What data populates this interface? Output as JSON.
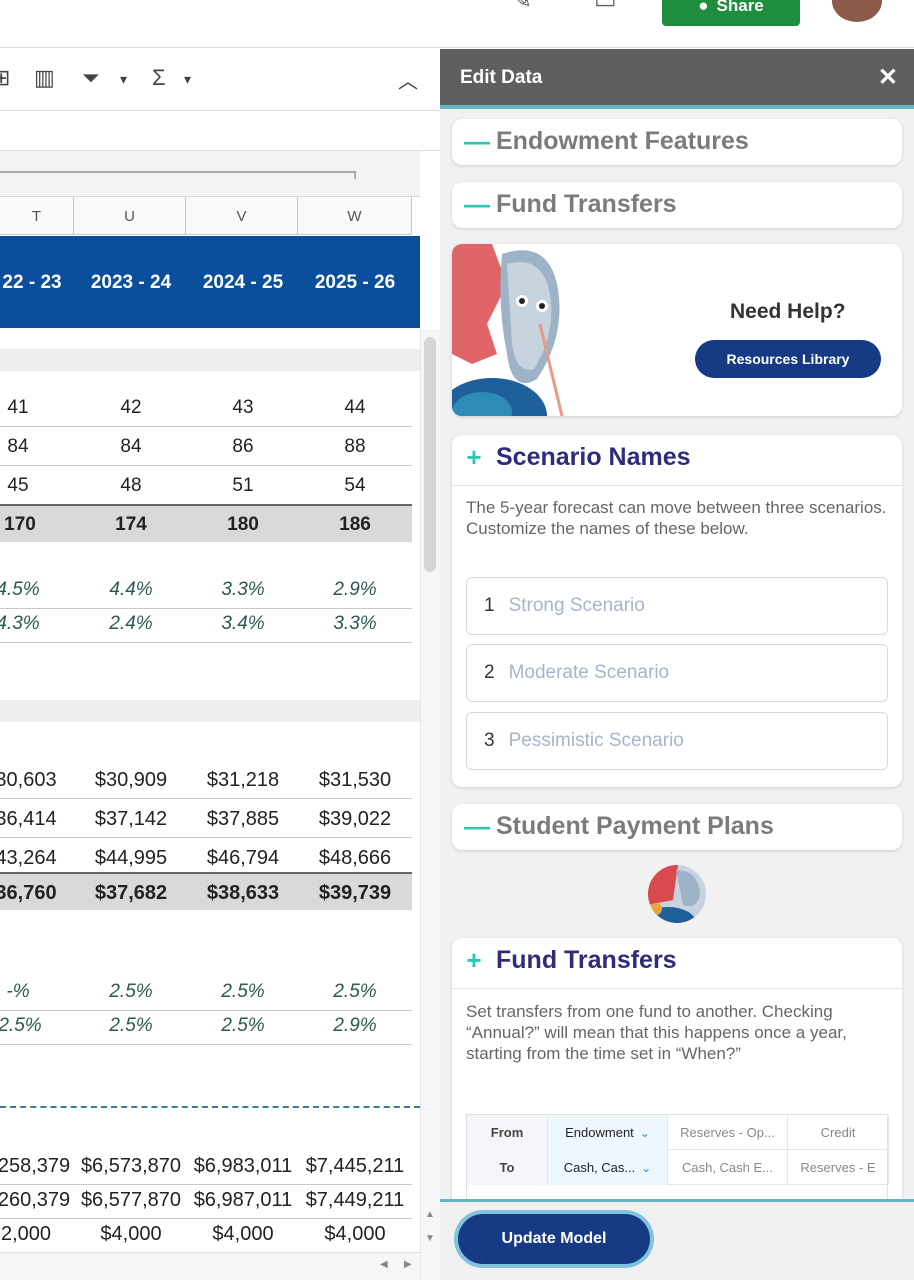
{
  "topbar": {
    "share_label": "Share"
  },
  "sheet": {
    "columns": [
      "T",
      "U",
      "V",
      "W"
    ],
    "years": [
      "22 - 23",
      "2023 - 24",
      "2024 - 25",
      "2025 - 26"
    ],
    "block1": [
      [
        "41",
        "42",
        "43",
        "44"
      ],
      [
        "84",
        "84",
        "86",
        "88"
      ],
      [
        "45",
        "48",
        "51",
        "54"
      ]
    ],
    "block1_total": [
      "170",
      "174",
      "180",
      "186"
    ],
    "block1_pct": [
      [
        "4.5%",
        "4.4%",
        "3.3%",
        "2.9%"
      ],
      [
        "4.3%",
        "2.4%",
        "3.4%",
        "3.3%"
      ]
    ],
    "block2": [
      [
        "30,603",
        "$30,909",
        "$31,218",
        "$31,530"
      ],
      [
        "36,414",
        "$37,142",
        "$37,885",
        "$39,022"
      ],
      [
        "43,264",
        "$44,995",
        "$46,794",
        "$48,666"
      ]
    ],
    "block2_total": [
      "36,760",
      "$37,682",
      "$38,633",
      "$39,739"
    ],
    "block2_pct": [
      [
        "-%",
        "2.5%",
        "2.5%",
        "2.5%"
      ],
      [
        "2.5%",
        "2.5%",
        "2.5%",
        "2.9%"
      ]
    ],
    "block3": [
      [
        "258,379",
        "$6,573,870",
        "$6,983,011",
        "$7,445,211"
      ],
      [
        "260,379",
        "$6,577,870",
        "$6,987,011",
        "$7,449,211"
      ],
      [
        "2,000",
        "$4,000",
        "$4,000",
        "$4,000"
      ]
    ]
  },
  "panel": {
    "title": "Edit Data",
    "close": "✕",
    "sections": {
      "endowment": "Endowment Features",
      "fund_transfers_collapsed": "Fund Transfers",
      "scenario_names": "Scenario Names",
      "student_payment": "Student Payment Plans",
      "fund_transfers": "Fund Transfers"
    },
    "help": {
      "title": "Need Help?",
      "button": "Resources Library"
    },
    "scenario_desc": "The 5-year forecast can move between three scenarios. Customize the names of these below.",
    "scenarios": [
      {
        "num": "1",
        "placeholder": "Strong Scenario"
      },
      {
        "num": "2",
        "placeholder": "Moderate Scenario"
      },
      {
        "num": "3",
        "placeholder": "Pessimistic Scenario"
      }
    ],
    "transfer_desc": "Set transfers from one fund to another. Checking “Annual?” will mean that this happens once a year, starting from the time set in “When?”",
    "transfer_table": {
      "from_label": "From",
      "to_label": "To",
      "from_values": [
        "Endowment",
        "Reserves - Op...",
        "Credit"
      ],
      "to_values": [
        "Cash, Cas...",
        "Cash, Cash E...",
        "Reserves - E"
      ]
    },
    "update_button": "Update Model"
  },
  "colors": {
    "header_blue": "#0b4f9c",
    "panel_header": "#5f5f5f",
    "accent_teal": "#2cc7b4",
    "title_navy": "#2f2c7a",
    "button_navy": "#173a85",
    "share_green": "#1e8e3e"
  }
}
